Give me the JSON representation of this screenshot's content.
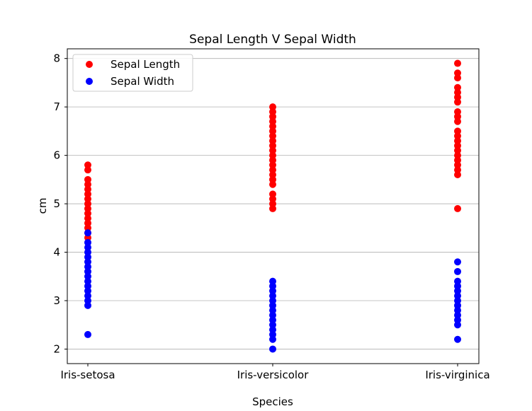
{
  "chart_data": {
    "type": "scatter",
    "title": "Sepal Length V Sepal Width",
    "xlabel": "Species",
    "ylabel": "cm",
    "categories": [
      "Iris-setosa",
      "Iris-versicolor",
      "Iris-virginica"
    ],
    "ylim": [
      1.7,
      8.2
    ],
    "yticks": [
      "2",
      "3",
      "4",
      "5",
      "6",
      "7",
      "8"
    ],
    "grid": "y",
    "legend_position": "top-left",
    "series": [
      {
        "name": "Sepal Length",
        "color": "#ff0000",
        "points": [
          {
            "category": "Iris-setosa",
            "values": [
              4.3,
              4.4,
              4.5,
              4.6,
              4.7,
              4.8,
              4.9,
              5.0,
              5.1,
              5.2,
              5.3,
              5.4,
              5.5,
              5.7,
              5.8
            ]
          },
          {
            "category": "Iris-versicolor",
            "values": [
              4.9,
              5.0,
              5.1,
              5.2,
              5.4,
              5.5,
              5.6,
              5.7,
              5.8,
              5.9,
              6.0,
              6.1,
              6.2,
              6.3,
              6.4,
              6.5,
              6.6,
              6.7,
              6.8,
              6.9,
              7.0
            ]
          },
          {
            "category": "Iris-virginica",
            "values": [
              4.9,
              5.6,
              5.7,
              5.8,
              5.9,
              6.0,
              6.1,
              6.2,
              6.3,
              6.4,
              6.5,
              6.7,
              6.8,
              6.9,
              7.1,
              7.2,
              7.3,
              7.4,
              7.6,
              7.7,
              7.9
            ]
          }
        ]
      },
      {
        "name": "Sepal Width",
        "color": "#0000ff",
        "points": [
          {
            "category": "Iris-setosa",
            "values": [
              2.3,
              2.9,
              3.0,
              3.1,
              3.2,
              3.3,
              3.4,
              3.5,
              3.6,
              3.7,
              3.8,
              3.9,
              4.0,
              4.1,
              4.2,
              4.4
            ]
          },
          {
            "category": "Iris-versicolor",
            "values": [
              2.0,
              2.2,
              2.3,
              2.4,
              2.5,
              2.6,
              2.7,
              2.8,
              2.9,
              3.0,
              3.1,
              3.2,
              3.3,
              3.4
            ]
          },
          {
            "category": "Iris-virginica",
            "values": [
              2.2,
              2.5,
              2.6,
              2.7,
              2.8,
              2.9,
              3.0,
              3.1,
              3.2,
              3.3,
              3.4,
              3.6,
              3.8
            ]
          }
        ]
      }
    ]
  }
}
